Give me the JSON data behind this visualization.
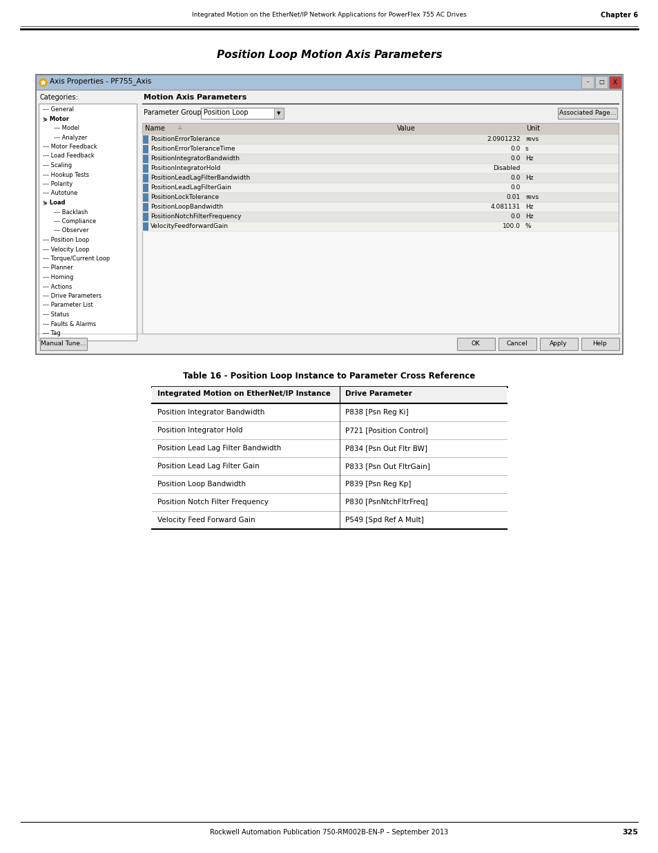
{
  "page_title_italic": "Position Loop Motion Axis Parameters",
  "header_text": "Integrated Motion on the EtherNet/IP Network Applications for PowerFlex 755 AC Drives",
  "chapter_text": "Chapter 6",
  "footer_text": "Rockwell Automation Publication 750-RM002B-EN-P – September 2013",
  "page_number": "325",
  "dialog_title": "Axis Properties - PF755_Axis",
  "dialog_section": "Motion Axis Parameters",
  "param_group_label": "Parameter Group:",
  "param_group_value": "Position Loop",
  "associated_page_btn": "Associated Page...",
  "categories_label": "Categories:",
  "tree_items": [
    {
      "label": "General",
      "indent": 0,
      "type": "normal"
    },
    {
      "label": "Motor",
      "indent": 0,
      "type": "expanded"
    },
    {
      "label": "Model",
      "indent": 1,
      "type": "child"
    },
    {
      "label": "Analyzer",
      "indent": 1,
      "type": "child"
    },
    {
      "label": "Motor Feedback",
      "indent": 0,
      "type": "normal"
    },
    {
      "label": "Load Feedback",
      "indent": 0,
      "type": "normal"
    },
    {
      "label": "Scaling",
      "indent": 0,
      "type": "normal"
    },
    {
      "label": "Hookup Tests",
      "indent": 0,
      "type": "normal"
    },
    {
      "label": "Polarity",
      "indent": 0,
      "type": "normal"
    },
    {
      "label": "Autotune",
      "indent": 0,
      "type": "normal"
    },
    {
      "label": "Load",
      "indent": 0,
      "type": "expanded"
    },
    {
      "label": "Backlash",
      "indent": 1,
      "type": "child"
    },
    {
      "label": "Compliance",
      "indent": 1,
      "type": "child"
    },
    {
      "label": "Observer",
      "indent": 1,
      "type": "child"
    },
    {
      "label": "Position Loop",
      "indent": 0,
      "type": "normal"
    },
    {
      "label": "Velocity Loop",
      "indent": 0,
      "type": "normal"
    },
    {
      "label": "Torque/Current Loop",
      "indent": 0,
      "type": "normal"
    },
    {
      "label": "Planner",
      "indent": 0,
      "type": "normal"
    },
    {
      "label": "Homing",
      "indent": 0,
      "type": "normal"
    },
    {
      "label": "Actions",
      "indent": 0,
      "type": "normal"
    },
    {
      "label": "Drive Parameters",
      "indent": 0,
      "type": "normal"
    },
    {
      "label": "Parameter List",
      "indent": 0,
      "type": "normal"
    },
    {
      "label": "Status",
      "indent": 0,
      "type": "normal"
    },
    {
      "label": "Faults & Alarms",
      "indent": 0,
      "type": "normal"
    },
    {
      "label": "Tag",
      "indent": 0,
      "type": "normal"
    }
  ],
  "table_headers": [
    "Name",
    "Value",
    "Unit"
  ],
  "table_rows": [
    {
      "name": "PositionErrorTolerance",
      "value": "2.0901232",
      "unit": "revs",
      "alt": true
    },
    {
      "name": "PositionErrorToleranceTime",
      "value": "0.0",
      "unit": "s",
      "alt": false
    },
    {
      "name": "PositionIntegratorBandwidth",
      "value": "0.0",
      "unit": "Hz",
      "alt": true
    },
    {
      "name": "PositionIntegratorHold",
      "value": "Disabled",
      "unit": "",
      "alt": false
    },
    {
      "name": "PositionLeadLagFilterBandwidth",
      "value": "0.0",
      "unit": "Hz",
      "alt": true
    },
    {
      "name": "PositionLeadLagFilterGain",
      "value": "0.0",
      "unit": "",
      "alt": false
    },
    {
      "name": "PositionLockTolerance",
      "value": "0.01",
      "unit": "revs",
      "alt": true
    },
    {
      "name": "PositionLoopBandwidth",
      "value": "4.081131",
      "unit": "Hz",
      "alt": false
    },
    {
      "name": "PositionNotchFilterFrequency",
      "value": "0.0",
      "unit": "Hz",
      "alt": true
    },
    {
      "name": "VelocityFeedforwardGain",
      "value": "100.0",
      "unit": "%",
      "alt": false
    }
  ],
  "manual_tune_btn": "Manual Tune...",
  "ok_btn": "OK",
  "cancel_btn": "Cancel",
  "apply_btn": "Apply",
  "help_btn": "Help",
  "cross_ref_title": "Table 16 - Position Loop Instance to Parameter Cross Reference",
  "cross_ref_col1": "Integrated Motion on EtherNet/IP Instance",
  "cross_ref_col2": "Drive Parameter",
  "cross_ref_rows": [
    {
      "instance": "Position Integrator Bandwidth",
      "param": "P838 [Psn Reg Ki]"
    },
    {
      "instance": "Position Integrator Hold",
      "param": "P721 [Position Control]"
    },
    {
      "instance": "Position Lead Lag Filter Bandwidth",
      "param": "P834 [Psn Out Fltr BW]"
    },
    {
      "instance": "Position Lead Lag Filter Gain",
      "param": "P833 [Psn Out FltrGain]"
    },
    {
      "instance": "Position Loop Bandwidth",
      "param": "P839 [Psn Reg Kp]"
    },
    {
      "instance": "Position Notch Filter Frequency",
      "param": "P830 [PsnNtchFltrFreq]"
    },
    {
      "instance": "Velocity Feed Forward Gain",
      "param": "P549 [Spd Ref A Mult]"
    }
  ]
}
